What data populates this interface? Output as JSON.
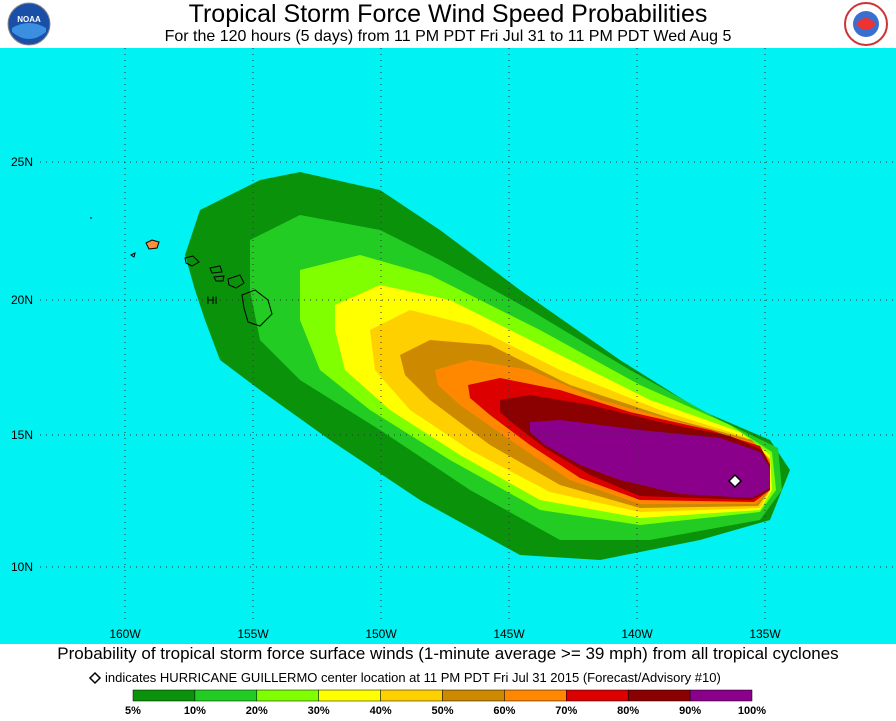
{
  "header": {
    "title": "Tropical Storm Force Wind Speed Probabilities",
    "subtitle": "For the 120 hours (5 days) from 11 PM PDT Fri Jul 31 to 11 PM PDT Wed Aug 5"
  },
  "map": {
    "latitude_labels": [
      "25N",
      "20N",
      "15N",
      "10N"
    ],
    "longitude_labels": [
      "160W",
      "155W",
      "150W",
      "145W",
      "140W",
      "135W"
    ],
    "region_label": "HI"
  },
  "footer": {
    "caption": "Probability of tropical storm force surface winds (1-minute average >= 39 mph) from all tropical cyclones",
    "note": "indicates HURRICANE GUILLERMO center location at 11 PM PDT Fri Jul 31 2015 (Forecast/Advisory #10)",
    "legend": {
      "labels": [
        "5%",
        "10%",
        "20%",
        "30%",
        "40%",
        "50%",
        "60%",
        "70%",
        "80%",
        "90%",
        "100%"
      ],
      "colors": [
        "#0a930a",
        "#22cc22",
        "#80ff00",
        "#ffff00",
        "#ffd000",
        "#cd8a00",
        "#ff8800",
        "#dd0000",
        "#8b0000",
        "#8b008b"
      ]
    }
  }
}
